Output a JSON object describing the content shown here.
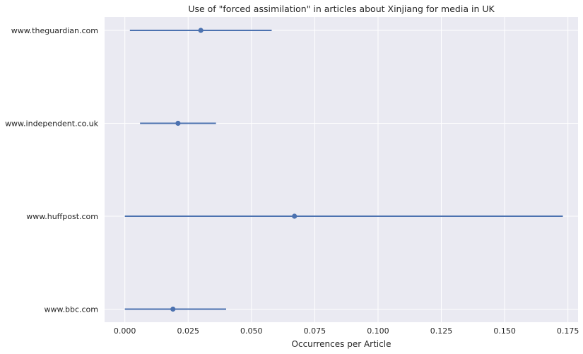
{
  "chart_data": {
    "type": "scatter",
    "title": "Use of \"forced assimilation\" in articles about Xinjiang for media in UK",
    "xlabel": "Occurrences per Article",
    "ylabel": "",
    "xlim": [
      -0.008,
      0.179
    ],
    "xticks": [
      0.0,
      0.025,
      0.05,
      0.075,
      0.1,
      0.125,
      0.15,
      0.175
    ],
    "xtick_labels": [
      "0.000",
      "0.025",
      "0.050",
      "0.075",
      "0.100",
      "0.125",
      "0.150",
      "0.175"
    ],
    "grid": true,
    "categories": [
      "www.theguardian.com",
      "www.independent.co.uk",
      "www.huffpost.com",
      "www.bbc.com"
    ],
    "series": [
      {
        "values": [
          0.03,
          0.021,
          0.067,
          0.019
        ],
        "error_low": [
          0.002,
          0.006,
          0.0,
          0.0
        ],
        "error_high": [
          0.058,
          0.036,
          0.173,
          0.04
        ]
      }
    ],
    "colors": {
      "series": "#4c72b0",
      "plot_background": "#eaeaf2",
      "grid": "#ffffff"
    }
  }
}
